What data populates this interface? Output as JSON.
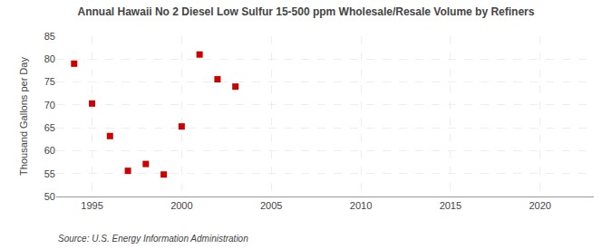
{
  "chart_data": {
    "type": "scatter",
    "title": "Annual Hawaii No 2 Diesel Low Sulfur 15-500 ppm Wholesale/Resale Volume by Refiners",
    "ylabel": "Thousand Gallons per Day",
    "source": "Source: U.S. Energy Information Administration",
    "x": [
      1994,
      1995,
      1996,
      1997,
      1998,
      1999,
      2000,
      2001,
      2002,
      2003
    ],
    "values": [
      79.0,
      70.3,
      63.2,
      55.6,
      57.1,
      54.8,
      65.3,
      81.0,
      75.6,
      74.0
    ],
    "color": "#cc0000",
    "marker": "square",
    "xlim": [
      1993,
      2023
    ],
    "ylim": [
      50,
      85
    ],
    "xticks": [
      1995,
      2000,
      2005,
      2010,
      2015,
      2020
    ],
    "yticks": [
      50,
      55,
      60,
      65,
      70,
      75,
      80,
      85
    ],
    "grid": true
  }
}
